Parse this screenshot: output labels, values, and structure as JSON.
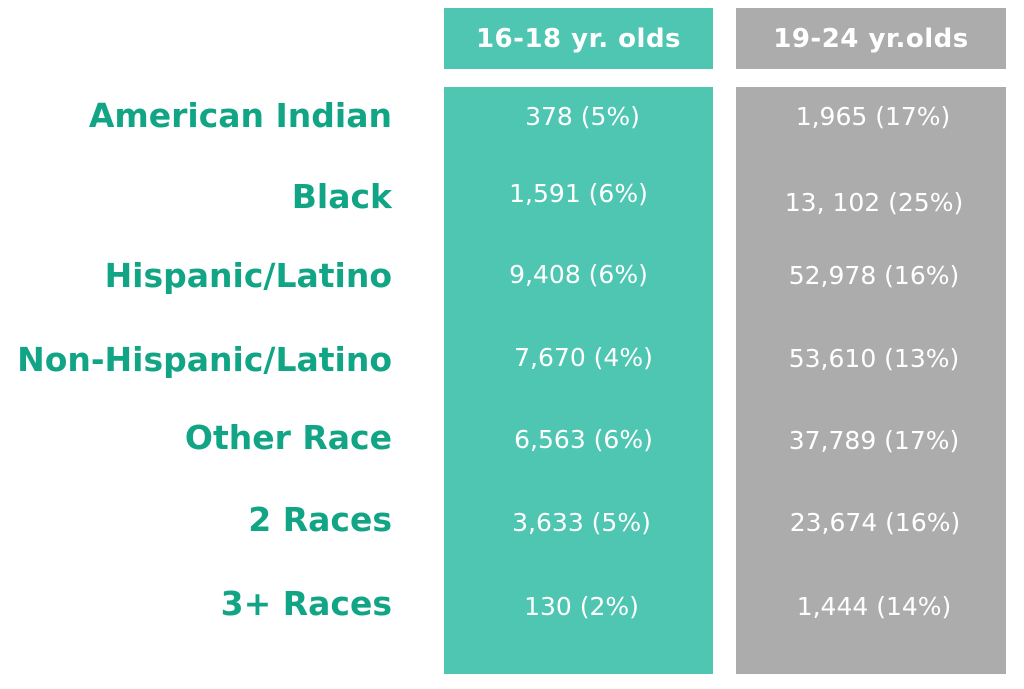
{
  "columns": {
    "col1_header": "16-18 yr. olds",
    "col2_header": "19-24 yr.olds"
  },
  "rows": [
    {
      "label": "American Indian",
      "col1": "378 (5%)",
      "col2": "1,965 (17%)"
    },
    {
      "label": "Black",
      "col1": "1,591 (6%)",
      "col2": "13, 102 (25%)"
    },
    {
      "label": "Hispanic/Latino",
      "col1": "9,408 (6%)",
      "col2": "52,978 (16%)"
    },
    {
      "label": "Non-Hispanic/Latino",
      "col1": "7,670 (4%)",
      "col2": "53,610 (13%)"
    },
    {
      "label": "Other Race",
      "col1": "6,563 (6%)",
      "col2": "37,789 (17%)"
    },
    {
      "label": "2 Races",
      "col1": "3,633 (5%)",
      "col2": "23,674 (16%)"
    },
    {
      "label": "3+ Races",
      "col1": "130 (2%)",
      "col2": "1,444 (14%)"
    }
  ],
  "colors": {
    "teal_column": "#4ec6b2",
    "gray_column": "#acacac",
    "label_text": "#12a585"
  }
}
